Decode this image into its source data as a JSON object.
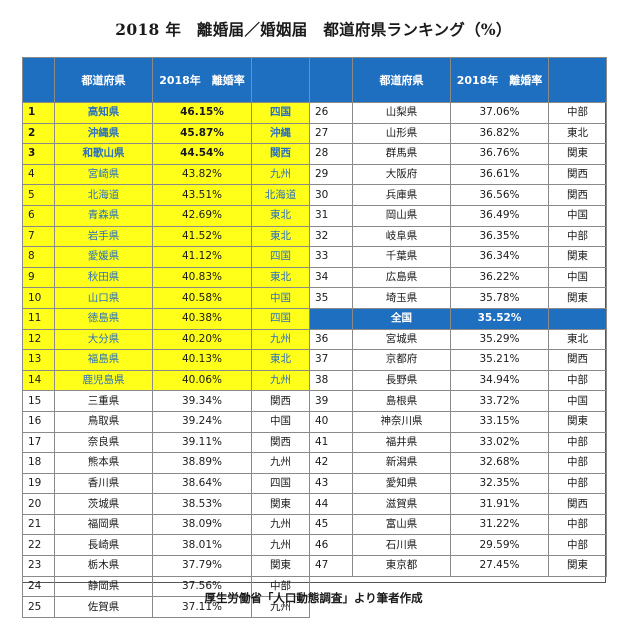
{
  "title": "2018 年　離婚届／婚姻届　都道府県ランキング（%）",
  "header": {
    "prefecture": "都道府県",
    "rate": "2018年　離婚率"
  },
  "left_rows": [
    {
      "rank": "1",
      "pref": "高知県",
      "rate": "46.15%",
      "region": "四国",
      "hl": true,
      "top": true
    },
    {
      "rank": "2",
      "pref": "沖縄県",
      "rate": "45.87%",
      "region": "沖縄",
      "hl": true,
      "top": true
    },
    {
      "rank": "3",
      "pref": "和歌山県",
      "rate": "44.54%",
      "region": "関西",
      "hl": true,
      "top": true
    },
    {
      "rank": "4",
      "pref": "宮崎県",
      "rate": "43.82%",
      "region": "九州",
      "hl": true
    },
    {
      "rank": "5",
      "pref": "北海道",
      "rate": "43.51%",
      "region": "北海道",
      "hl": true
    },
    {
      "rank": "6",
      "pref": "青森県",
      "rate": "42.69%",
      "region": "東北",
      "hl": true
    },
    {
      "rank": "7",
      "pref": "岩手県",
      "rate": "41.52%",
      "region": "東北",
      "hl": true
    },
    {
      "rank": "8",
      "pref": "愛媛県",
      "rate": "41.12%",
      "region": "四国",
      "hl": true
    },
    {
      "rank": "9",
      "pref": "秋田県",
      "rate": "40.83%",
      "region": "東北",
      "hl": true
    },
    {
      "rank": "10",
      "pref": "山口県",
      "rate": "40.58%",
      "region": "中国",
      "hl": true
    },
    {
      "rank": "11",
      "pref": "徳島県",
      "rate": "40.38%",
      "region": "四国",
      "hl": true
    },
    {
      "rank": "12",
      "pref": "大分県",
      "rate": "40.20%",
      "region": "九州",
      "hl": true
    },
    {
      "rank": "13",
      "pref": "福島県",
      "rate": "40.13%",
      "region": "東北",
      "hl": true
    },
    {
      "rank": "14",
      "pref": "鹿児島県",
      "rate": "40.06%",
      "region": "九州",
      "hl": true
    },
    {
      "rank": "15",
      "pref": "三重県",
      "rate": "39.34%",
      "region": "関西"
    },
    {
      "rank": "16",
      "pref": "鳥取県",
      "rate": "39.24%",
      "region": "中国"
    },
    {
      "rank": "17",
      "pref": "奈良県",
      "rate": "39.11%",
      "region": "関西"
    },
    {
      "rank": "18",
      "pref": "熊本県",
      "rate": "38.89%",
      "region": "九州"
    },
    {
      "rank": "19",
      "pref": "香川県",
      "rate": "38.64%",
      "region": "四国"
    },
    {
      "rank": "20",
      "pref": "茨城県",
      "rate": "38.53%",
      "region": "関東"
    },
    {
      "rank": "21",
      "pref": "福岡県",
      "rate": "38.09%",
      "region": "九州"
    },
    {
      "rank": "22",
      "pref": "長崎県",
      "rate": "38.01%",
      "region": "九州"
    },
    {
      "rank": "23",
      "pref": "栃木県",
      "rate": "37.79%",
      "region": "関東"
    },
    {
      "rank": "24",
      "pref": "静岡県",
      "rate": "37.56%",
      "region": "中部"
    },
    {
      "rank": "25",
      "pref": "佐賀県",
      "rate": "37.11%",
      "region": "九州"
    }
  ],
  "right_rows_top": [
    {
      "rank": "26",
      "pref": "山梨県",
      "rate": "37.06%",
      "region": "中部"
    },
    {
      "rank": "27",
      "pref": "山形県",
      "rate": "36.82%",
      "region": "東北"
    },
    {
      "rank": "28",
      "pref": "群馬県",
      "rate": "36.76%",
      "region": "関東"
    },
    {
      "rank": "29",
      "pref": "大阪府",
      "rate": "36.61%",
      "region": "関西"
    },
    {
      "rank": "30",
      "pref": "兵庫県",
      "rate": "36.56%",
      "region": "関西"
    },
    {
      "rank": "31",
      "pref": "岡山県",
      "rate": "36.49%",
      "region": "中国"
    },
    {
      "rank": "32",
      "pref": "岐阜県",
      "rate": "36.35%",
      "region": "中部"
    },
    {
      "rank": "33",
      "pref": "千葉県",
      "rate": "36.34%",
      "region": "関東"
    },
    {
      "rank": "34",
      "pref": "広島県",
      "rate": "36.22%",
      "region": "中国"
    },
    {
      "rank": "35",
      "pref": "埼玉県",
      "rate": "35.78%",
      "region": "関東"
    }
  ],
  "national": {
    "label": "全国",
    "rate": "35.52%"
  },
  "right_rows_bottom": [
    {
      "rank": "36",
      "pref": "宮城県",
      "rate": "35.29%",
      "region": "東北"
    },
    {
      "rank": "37",
      "pref": "京都府",
      "rate": "35.21%",
      "region": "関西"
    },
    {
      "rank": "38",
      "pref": "長野県",
      "rate": "34.94%",
      "region": "中部"
    },
    {
      "rank": "39",
      "pref": "島根県",
      "rate": "33.72%",
      "region": "中国"
    },
    {
      "rank": "40",
      "pref": "神奈川県",
      "rate": "33.15%",
      "region": "関東"
    },
    {
      "rank": "41",
      "pref": "福井県",
      "rate": "33.02%",
      "region": "中部"
    },
    {
      "rank": "42",
      "pref": "新潟県",
      "rate": "32.68%",
      "region": "中部"
    },
    {
      "rank": "43",
      "pref": "愛知県",
      "rate": "32.35%",
      "region": "中部"
    },
    {
      "rank": "44",
      "pref": "滋賀県",
      "rate": "31.91%",
      "region": "関西"
    },
    {
      "rank": "45",
      "pref": "富山県",
      "rate": "31.22%",
      "region": "中部"
    },
    {
      "rank": "46",
      "pref": "石川県",
      "rate": "29.59%",
      "region": "中部"
    },
    {
      "rank": "47",
      "pref": "東京都",
      "rate": "27.45%",
      "region": "関東"
    }
  ],
  "source": "厚生労働省「人口動態調査」より筆者作成"
}
